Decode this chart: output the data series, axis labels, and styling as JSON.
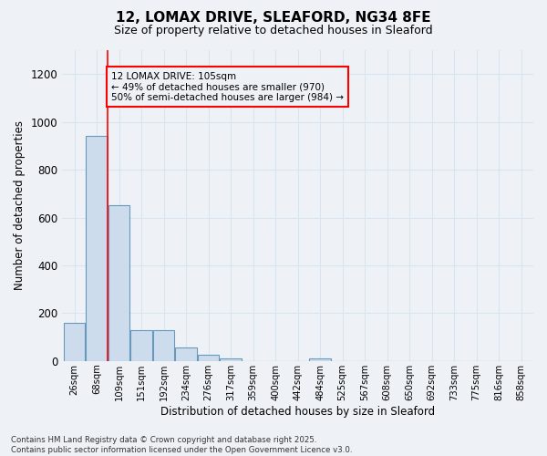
{
  "title1": "12, LOMAX DRIVE, SLEAFORD, NG34 8FE",
  "title2": "Size of property relative to detached houses in Sleaford",
  "xlabel": "Distribution of detached houses by size in Sleaford",
  "ylabel": "Number of detached properties",
  "bar_color": "#ccdcec",
  "bar_edge_color": "#6699bb",
  "bin_labels": [
    "26sqm",
    "68sqm",
    "109sqm",
    "151sqm",
    "192sqm",
    "234sqm",
    "276sqm",
    "317sqm",
    "359sqm",
    "400sqm",
    "442sqm",
    "484sqm",
    "525sqm",
    "567sqm",
    "608sqm",
    "650sqm",
    "692sqm",
    "733sqm",
    "775sqm",
    "816sqm",
    "858sqm"
  ],
  "bar_heights": [
    160,
    940,
    650,
    130,
    130,
    55,
    25,
    12,
    0,
    0,
    0,
    12,
    0,
    0,
    0,
    0,
    0,
    0,
    0,
    0,
    0
  ],
  "ylim": [
    0,
    1300
  ],
  "yticks": [
    0,
    200,
    400,
    600,
    800,
    1000,
    1200
  ],
  "red_line_bin": 1,
  "annotation_text": "12 LOMAX DRIVE: 105sqm\n← 49% of detached houses are smaller (970)\n50% of semi-detached houses are larger (984) →",
  "footer": "Contains HM Land Registry data © Crown copyright and database right 2025.\nContains public sector information licensed under the Open Government Licence v3.0.",
  "background_color": "#eef2f6",
  "grid_color": "#d8e4f0"
}
